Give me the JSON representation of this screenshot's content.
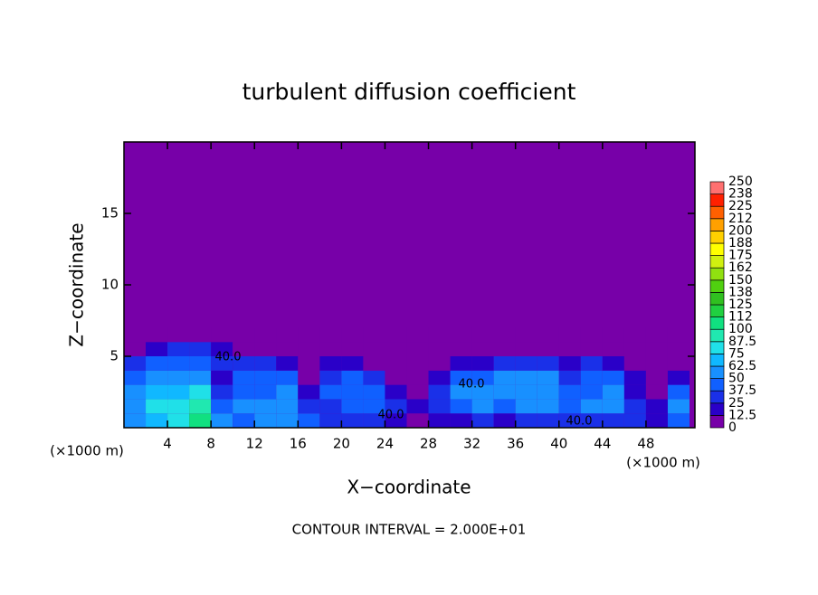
{
  "chart_data": {
    "type": "contour",
    "title": "turbulent diffusion coefficient",
    "xlabel": "X−coordinate",
    "ylabel": "Z−coordinate",
    "x_unit": "(×1000 m)",
    "y_unit": "(×1000 m)",
    "footer": "CONTOUR INTERVAL = 2.000E+01",
    "xlim": [
      0,
      52.5
    ],
    "ylim": [
      0,
      20
    ],
    "xticks": [
      4,
      8,
      12,
      16,
      20,
      24,
      28,
      32,
      36,
      40,
      44,
      48
    ],
    "yticks": [
      5,
      10,
      15
    ],
    "background": "#7700a8",
    "x": [
      1,
      3,
      5,
      7,
      9,
      11,
      13,
      15,
      17,
      19,
      21,
      23,
      25,
      27,
      29,
      31,
      33,
      35,
      37,
      39,
      41,
      43,
      45,
      47,
      49,
      51
    ],
    "z": [
      0.5,
      1.5,
      2.5,
      3.5,
      4.5,
      5.5,
      6.5
    ],
    "values": [
      [
        60,
        55,
        50,
        40,
        30,
        10,
        5
      ],
      [
        70,
        75,
        65,
        55,
        40,
        20,
        5
      ],
      [
        80,
        85,
        70,
        60,
        45,
        25,
        10
      ],
      [
        100,
        90,
        80,
        60,
        40,
        25,
        10
      ],
      [
        60,
        40,
        30,
        20,
        30,
        20,
        5
      ],
      [
        40,
        50,
        45,
        40,
        25,
        10,
        5
      ],
      [
        50,
        55,
        45,
        40,
        30,
        10,
        5
      ],
      [
        50,
        55,
        60,
        40,
        20,
        5,
        5
      ],
      [
        40,
        35,
        20,
        10,
        5,
        5,
        5
      ],
      [
        30,
        35,
        40,
        35,
        20,
        5,
        5
      ],
      [
        30,
        40,
        45,
        40,
        20,
        5,
        5
      ],
      [
        25,
        45,
        40,
        30,
        10,
        5,
        5
      ],
      [
        20,
        30,
        20,
        10,
        5,
        5,
        5
      ],
      [
        10,
        15,
        10,
        5,
        5,
        5,
        5
      ],
      [
        20,
        35,
        30,
        20,
        5,
        5,
        5
      ],
      [
        20,
        40,
        50,
        40,
        15,
        5,
        5
      ],
      [
        25,
        50,
        60,
        45,
        20,
        5,
        5
      ],
      [
        20,
        45,
        60,
        50,
        25,
        5,
        5
      ],
      [
        30,
        50,
        55,
        50,
        25,
        5,
        5
      ],
      [
        35,
        55,
        60,
        55,
        30,
        5,
        5
      ],
      [
        30,
        45,
        40,
        35,
        20,
        5,
        5
      ],
      [
        30,
        50,
        45,
        40,
        25,
        5,
        5
      ],
      [
        35,
        60,
        55,
        40,
        20,
        5,
        5
      ],
      [
        25,
        30,
        20,
        15,
        10,
        5,
        5
      ],
      [
        20,
        20,
        10,
        5,
        5,
        5,
        5
      ],
      [
        40,
        50,
        40,
        20,
        10,
        5,
        5
      ]
    ],
    "contour_labels": [
      "40.0",
      "40.0",
      "40.0",
      "40.0"
    ],
    "colorbar": {
      "levels": [
        0,
        12.5,
        25,
        37.5,
        50,
        62.5,
        75,
        87.5,
        100,
        112,
        125,
        138,
        150,
        162,
        175,
        188,
        200,
        212,
        225,
        238,
        250
      ],
      "colors": [
        "#7700a8",
        "#2a00c8",
        "#1a30e8",
        "#1060ff",
        "#1890ff",
        "#10b8ff",
        "#20e0e8",
        "#20e8b0",
        "#10e080",
        "#20d040",
        "#30c020",
        "#50d010",
        "#90e010",
        "#d0f010",
        "#ffff00",
        "#ffd000",
        "#ffa000",
        "#ff6000",
        "#ff2000",
        "#ff7070"
      ]
    }
  }
}
